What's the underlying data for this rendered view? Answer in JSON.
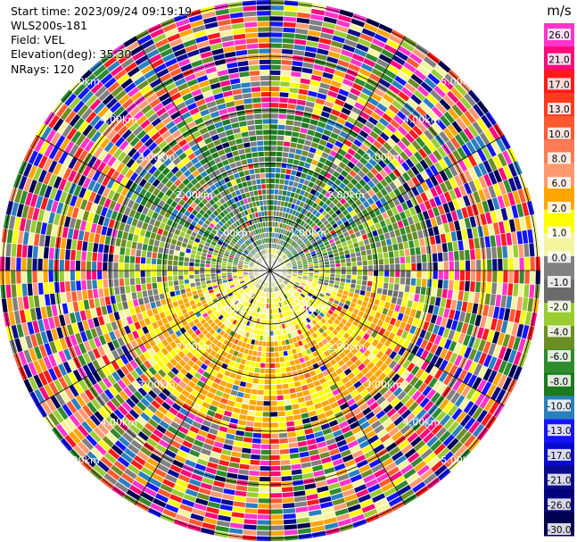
{
  "info": {
    "start_time": "Start time: 2023/09/24 09:19:19",
    "device": "WLS200s-181",
    "field": "Field: VEL",
    "elevation": "Elevation(deg): 35.30",
    "nrays": "NRays: 120"
  },
  "colorbar": {
    "unit": "m/s",
    "ticks": [
      "26.0",
      "21.0",
      "17.0",
      "13.0",
      "10.0",
      "8.0",
      "6.0",
      "2.0",
      "1.0",
      "0.0",
      "-1.0",
      "-2.0",
      "-4.0",
      "-6.0",
      "-8.0",
      "-10.0",
      "-13.0",
      "-17.0",
      "-21.0",
      "-26.0",
      "-30.0"
    ],
    "colors": [
      "#ff33cc",
      "#ff0a7a",
      "#ff1a1a",
      "#ff3b1f",
      "#ff5a30",
      "#ff7a55",
      "#ff9a70",
      "#ffa500",
      "#ffff00",
      "#f5f5a0",
      "#808080",
      "#6b6b6b",
      "#9acd32",
      "#6b8e23",
      "#2e8b2e",
      "#1e7a1e",
      "#2a7fbf",
      "#1414ff",
      "#0a0acd",
      "#0a0a8b",
      "#00007a",
      "#000050"
    ]
  },
  "rings": {
    "labels": [
      "1.00km",
      "2.00km",
      "3.00km",
      "4.00km",
      "5.00km"
    ],
    "range_km": [
      1,
      2,
      3,
      4,
      5
    ]
  },
  "chart_data": {
    "type": "heatmap",
    "field": "VEL",
    "unit": "m/s",
    "nrays": 120,
    "elevation_deg": 35.3,
    "vmin": -30.0,
    "vmax": 26.0,
    "range_rings_km": [
      1,
      2,
      3,
      4,
      5
    ]
  }
}
